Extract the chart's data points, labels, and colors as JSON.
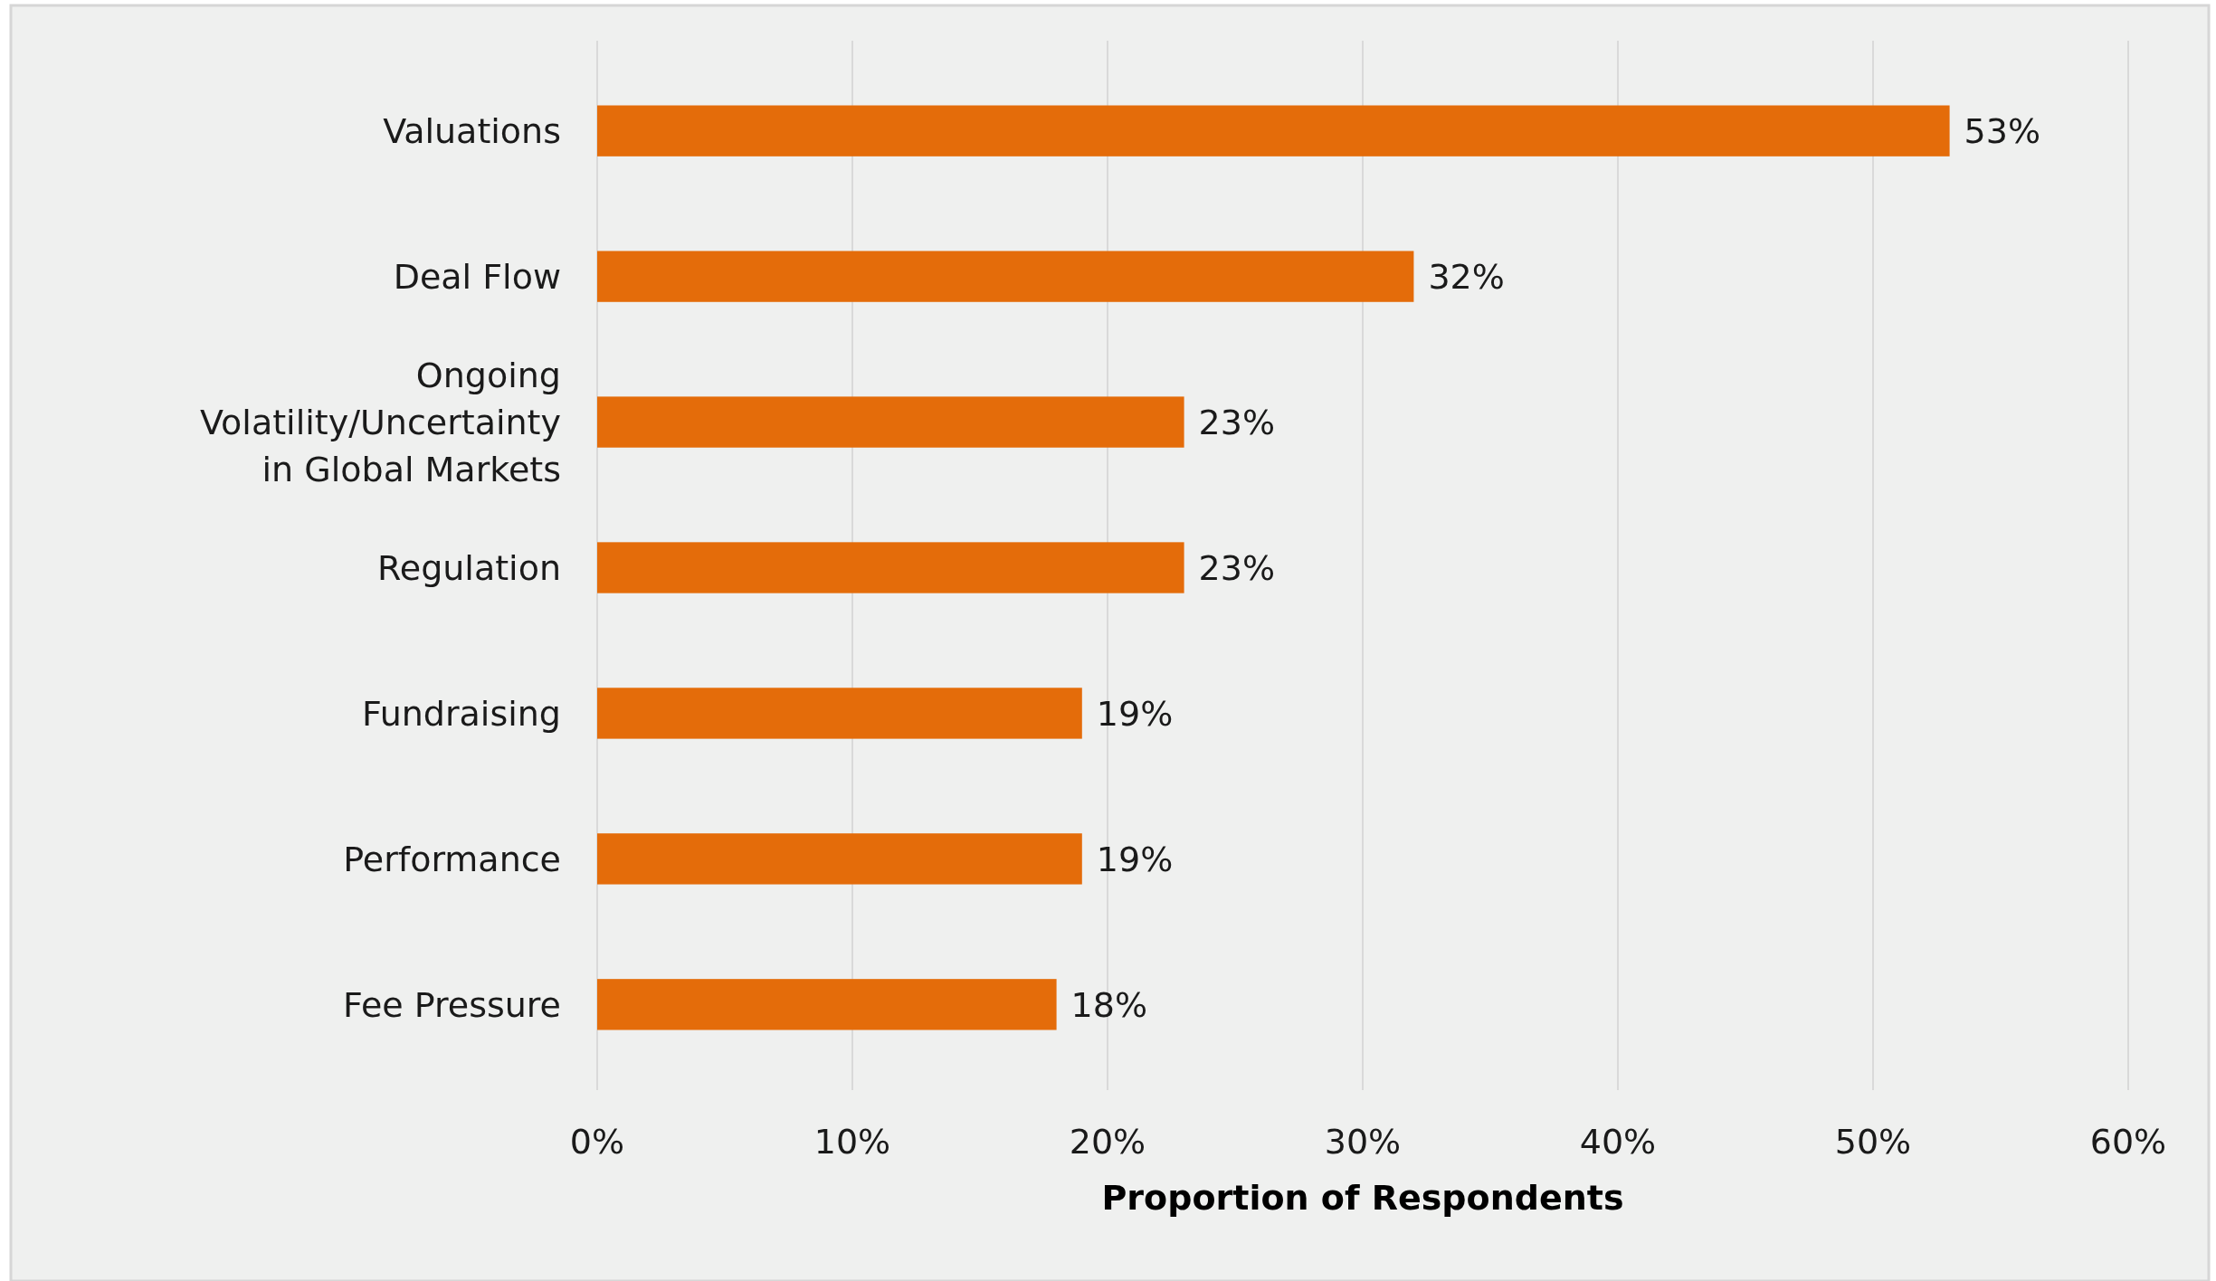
{
  "chart_data": {
    "type": "bar",
    "orientation": "horizontal",
    "xlabel": "Proportion of Respondents",
    "categories": [
      "Valuations",
      "Deal Flow",
      "Ongoing Volatility/Uncertainty in Global Markets",
      "Regulation",
      "Fundraising",
      "Performance",
      "Fee Pressure"
    ],
    "values": [
      53,
      32,
      23,
      23,
      19,
      19,
      18
    ],
    "value_labels": [
      "53%",
      "32%",
      "23%",
      "23%",
      "19%",
      "19%",
      "18%"
    ],
    "color": "#e46c0a",
    "xlim": [
      0,
      60
    ],
    "xticks": [
      {
        "value": 0,
        "label": "0%"
      },
      {
        "value": 10,
        "label": "10%"
      },
      {
        "value": 20,
        "label": "20%"
      },
      {
        "value": 30,
        "label": "30%"
      },
      {
        "value": 40,
        "label": "40%"
      },
      {
        "value": 50,
        "label": "50%"
      },
      {
        "value": 60,
        "label": "60%"
      }
    ],
    "grid": "x"
  }
}
